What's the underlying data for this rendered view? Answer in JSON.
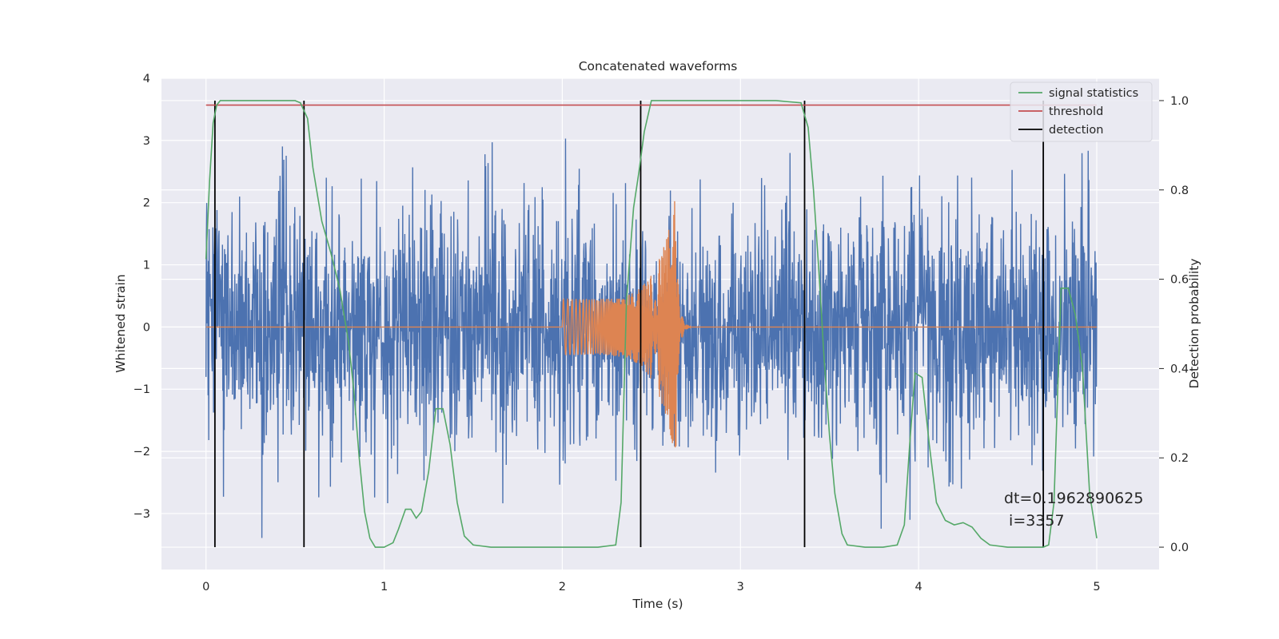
{
  "chart_data": {
    "type": "line",
    "title": "Concatenated waveforms",
    "xlabel": "Time (s)",
    "ylabel_left": "Whitened strain",
    "ylabel_right": "Detection probability",
    "xlim": [
      -0.25,
      5.35
    ],
    "ylim_left": [
      -3.9,
      4.0
    ],
    "ylim_right": [
      -0.05,
      1.05
    ],
    "xticks": [
      0,
      1,
      2,
      3,
      4,
      5
    ],
    "xtick_labels": [
      "0",
      "1",
      "2",
      "3",
      "4",
      "5"
    ],
    "yticks_left": [
      -3,
      -2,
      -1,
      0,
      1,
      2,
      3,
      4
    ],
    "ytick_labels_left": [
      "−3",
      "−2",
      "−1",
      "0",
      "1",
      "2",
      "3",
      "4"
    ],
    "yticks_right": [
      0.0,
      0.2,
      0.4,
      0.6,
      0.8,
      1.0
    ],
    "ytick_labels_right": [
      "0.0",
      "0.2",
      "0.4",
      "0.6",
      "0.8",
      "1.0"
    ],
    "grid": true,
    "legend_position": "top-right",
    "legend": [
      {
        "label": "signal statistics",
        "color": "#55a868"
      },
      {
        "label": "threshold",
        "color": "#c44e52"
      },
      {
        "label": "detection",
        "color": "#000000"
      }
    ],
    "series": [
      {
        "name": "whitened strain (noise)",
        "axis": "left",
        "color": "#4c72b0",
        "x_range": [
          0,
          5
        ],
        "typical_amplitude": 1.2,
        "max_amplitude": 3.6
      },
      {
        "name": "injected waveform",
        "axis": "left",
        "color": "#dd8452",
        "x_range": [
          0,
          5
        ],
        "chirp_start": 2.0,
        "merger_time": 2.64,
        "amplitude_start": 0.45,
        "amplitude_peak": 2.2
      },
      {
        "name": "signal statistics",
        "axis": "right",
        "color": "#55a868",
        "x": [
          0,
          0.02,
          0.04,
          0.06,
          0.08,
          0.12,
          0.2,
          0.4,
          0.5,
          0.53,
          0.57,
          0.6,
          0.65,
          0.7,
          0.75,
          0.8,
          0.83,
          0.86,
          0.89,
          0.92,
          0.95,
          1.0,
          1.05,
          1.08,
          1.12,
          1.15,
          1.18,
          1.21,
          1.25,
          1.29,
          1.33,
          1.37,
          1.41,
          1.45,
          1.5,
          1.6,
          1.8,
          2.0,
          2.2,
          2.3,
          2.33,
          2.36,
          2.4,
          2.43,
          2.46,
          2.5,
          2.6,
          2.8,
          3.0,
          3.2,
          3.34,
          3.38,
          3.41,
          3.44,
          3.47,
          3.5,
          3.53,
          3.57,
          3.6,
          3.7,
          3.8,
          3.88,
          3.92,
          3.95,
          3.98,
          4.02,
          4.06,
          4.1,
          4.15,
          4.2,
          4.25,
          4.3,
          4.35,
          4.4,
          4.5,
          4.6,
          4.7,
          4.73,
          4.76,
          4.8,
          4.84,
          4.88,
          4.92,
          4.96,
          5.0
        ],
        "y": [
          0.645,
          0.82,
          0.95,
          0.99,
          1.0,
          1.0,
          1.0,
          1.0,
          1.0,
          0.995,
          0.96,
          0.85,
          0.73,
          0.66,
          0.58,
          0.46,
          0.35,
          0.2,
          0.08,
          0.02,
          0.0,
          0.0,
          0.01,
          0.04,
          0.085,
          0.085,
          0.065,
          0.08,
          0.17,
          0.31,
          0.31,
          0.23,
          0.1,
          0.025,
          0.005,
          0.0,
          0.0,
          0.0,
          0.0,
          0.005,
          0.1,
          0.55,
          0.76,
          0.84,
          0.93,
          1.0,
          1.0,
          1.0,
          1.0,
          1.0,
          0.995,
          0.94,
          0.8,
          0.62,
          0.42,
          0.25,
          0.12,
          0.03,
          0.005,
          0.0,
          0.0,
          0.005,
          0.05,
          0.23,
          0.39,
          0.38,
          0.23,
          0.1,
          0.06,
          0.05,
          0.055,
          0.045,
          0.02,
          0.005,
          0.0,
          0.0,
          0.0,
          0.005,
          0.1,
          0.58,
          0.58,
          0.52,
          0.4,
          0.12,
          0.02
        ]
      },
      {
        "name": "threshold",
        "axis": "right",
        "color": "#c44e52",
        "x": [
          0,
          5
        ],
        "y": [
          0.99,
          0.99
        ]
      }
    ],
    "detections": {
      "axis": "right",
      "color": "#000000",
      "x": [
        0.05,
        0.55,
        2.44,
        3.36,
        4.7
      ],
      "y_range": [
        0.0,
        1.0
      ]
    },
    "annotation": {
      "line1": "dt=0.1962890625",
      "line2": " i=3357",
      "x": 4.52,
      "y": -2.7
    }
  }
}
